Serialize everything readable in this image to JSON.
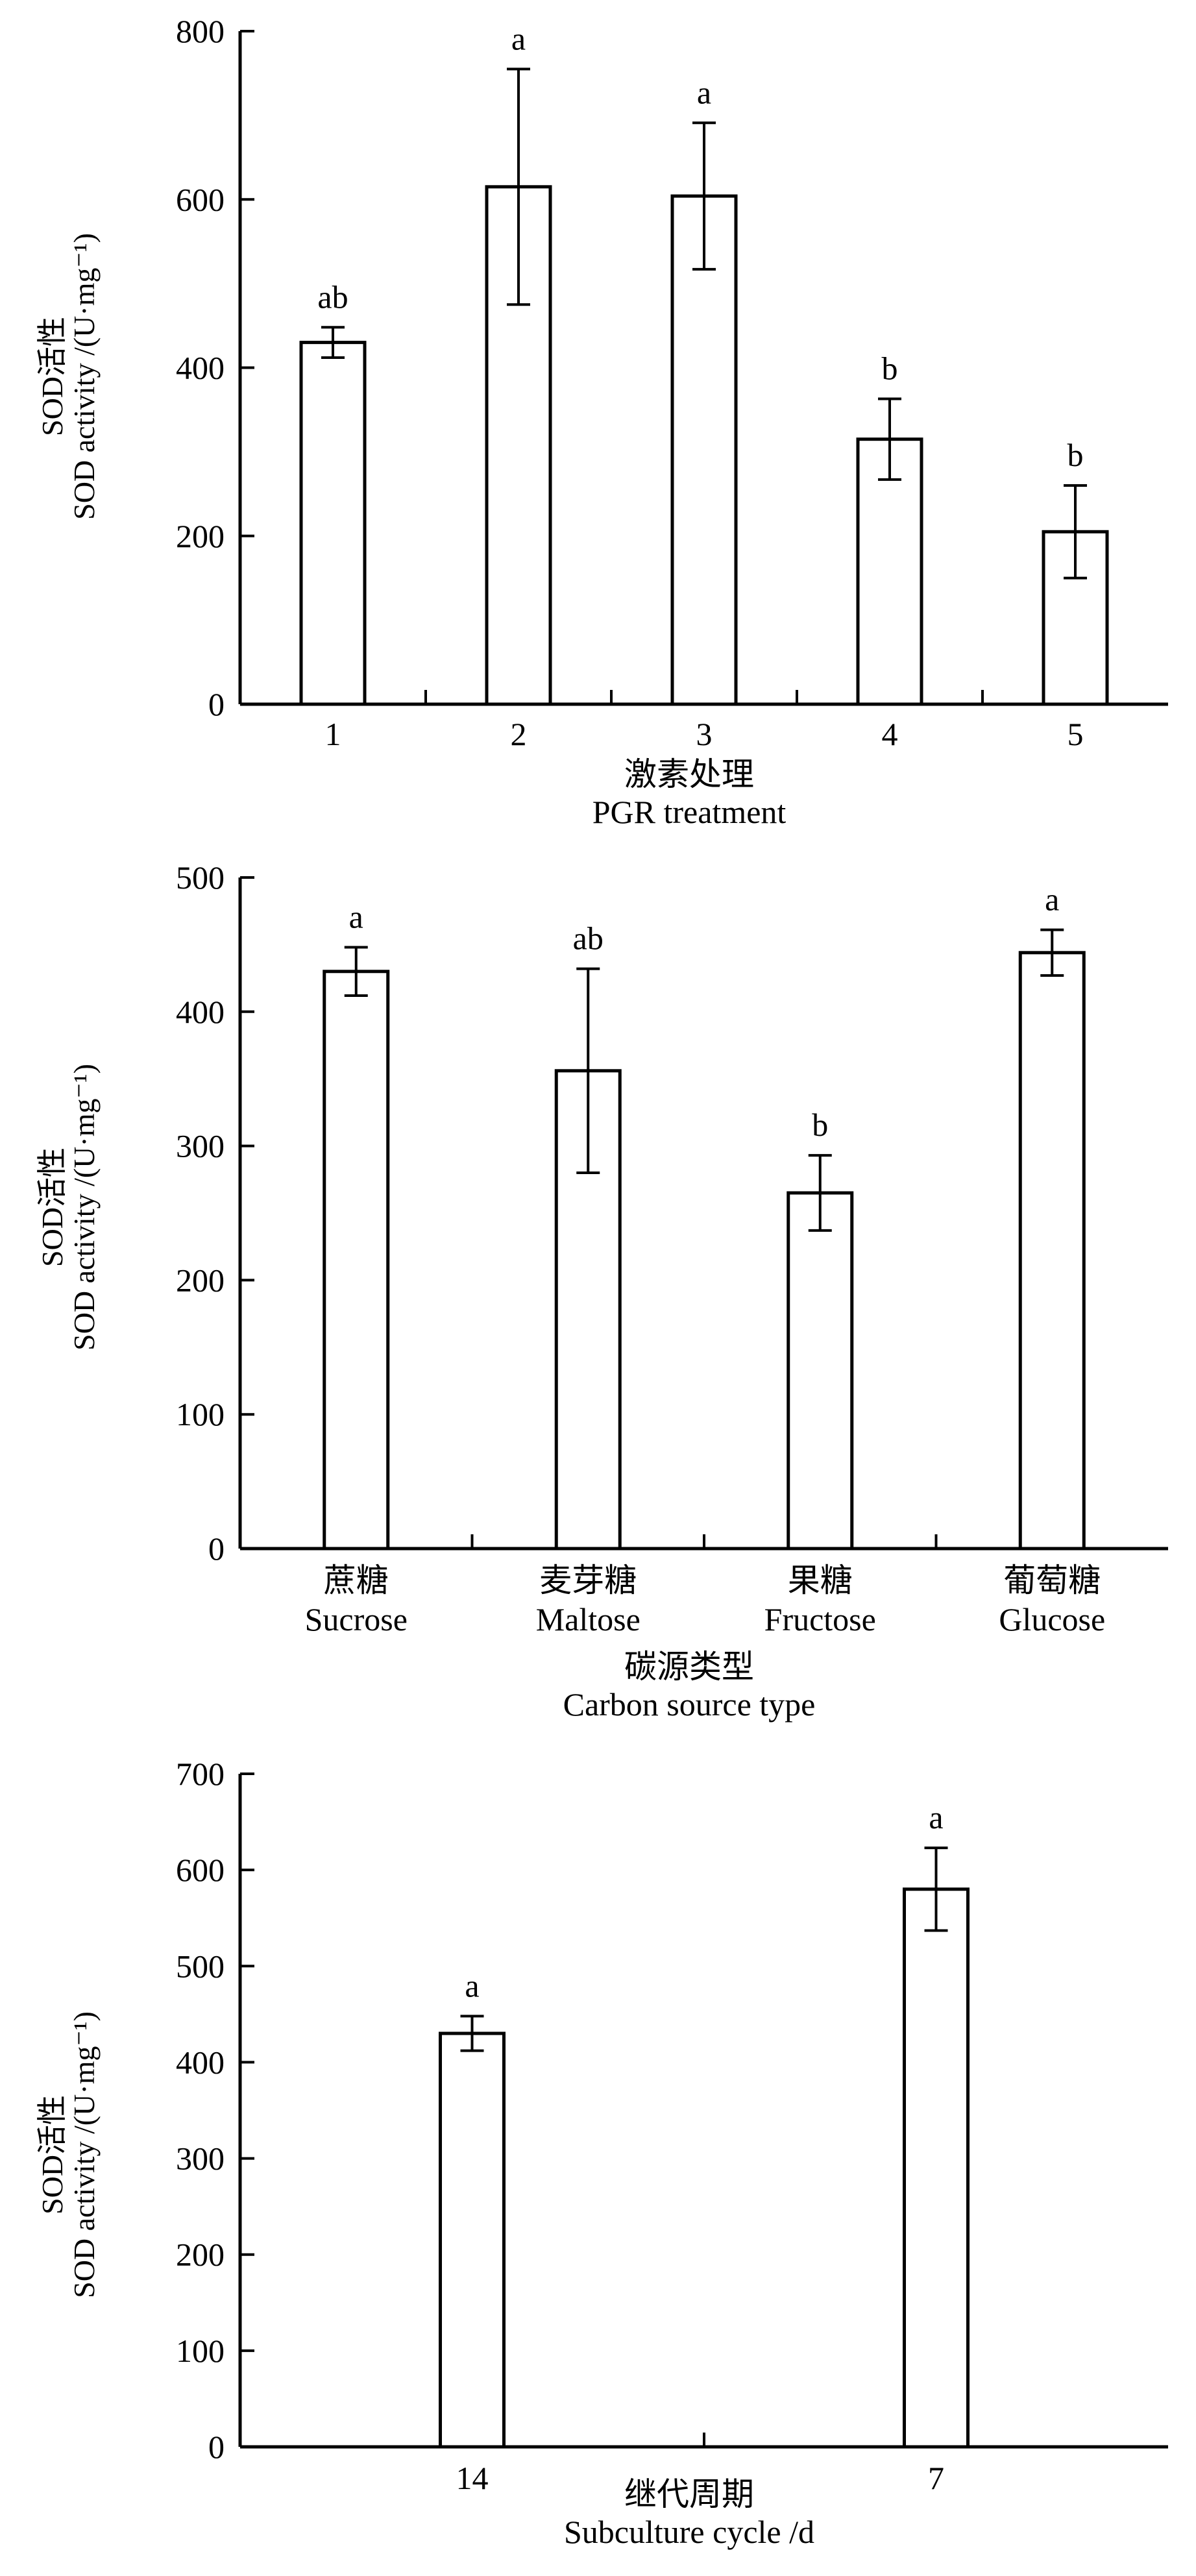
{
  "chart_data": [
    {
      "type": "bar",
      "ylabel_cn": "SOD活性",
      "ylabel_en": "SOD activity /(U·mg⁻¹)",
      "xlabel_cn": "激素处理",
      "xlabel_en": "PGR treatment",
      "ylim": [
        0,
        800
      ],
      "yticks": [
        "0",
        "200",
        "400",
        "600",
        "800"
      ],
      "categories": [
        "1",
        "2",
        "3",
        "4",
        "5"
      ],
      "values": [
        430,
        615,
        604,
        315,
        205
      ],
      "errors": [
        18,
        140,
        87,
        48,
        55
      ],
      "letters": [
        "ab",
        "a",
        "a",
        "b",
        "b"
      ],
      "fill": "#ffffff"
    },
    {
      "type": "bar",
      "ylabel_cn": "SOD活性",
      "ylabel_en": "SOD activity /(U·mg⁻¹)",
      "xlabel_cn": "碳源类型",
      "xlabel_en": "Carbon source type",
      "ylim": [
        0,
        500
      ],
      "yticks": [
        "0",
        "100",
        "200",
        "300",
        "400",
        "500"
      ],
      "categories": [
        "蔗糖",
        "麦芽糖",
        "果糖",
        "葡萄糖"
      ],
      "categories_en": [
        "Sucrose",
        "Maltose",
        "Fructose",
        "Glucose"
      ],
      "values": [
        430,
        356,
        265,
        444
      ],
      "errors": [
        18,
        76,
        28,
        17
      ],
      "letters": [
        "a",
        "ab",
        "b",
        "a"
      ],
      "fill": "#ffffff"
    },
    {
      "type": "bar",
      "ylabel_cn": "SOD活性",
      "ylabel_en": "SOD activity /(U·mg⁻¹)",
      "xlabel_cn": "继代周期",
      "xlabel_en": "Subculture cycle /d",
      "ylim": [
        0,
        700
      ],
      "yticks": [
        "0",
        "100",
        "200",
        "300",
        "400",
        "500",
        "600",
        "700"
      ],
      "categories": [
        "14",
        "7"
      ],
      "values": [
        430,
        580
      ],
      "errors": [
        18,
        43
      ],
      "letters": [
        "a",
        "a"
      ],
      "fill": "#ffffff"
    }
  ]
}
